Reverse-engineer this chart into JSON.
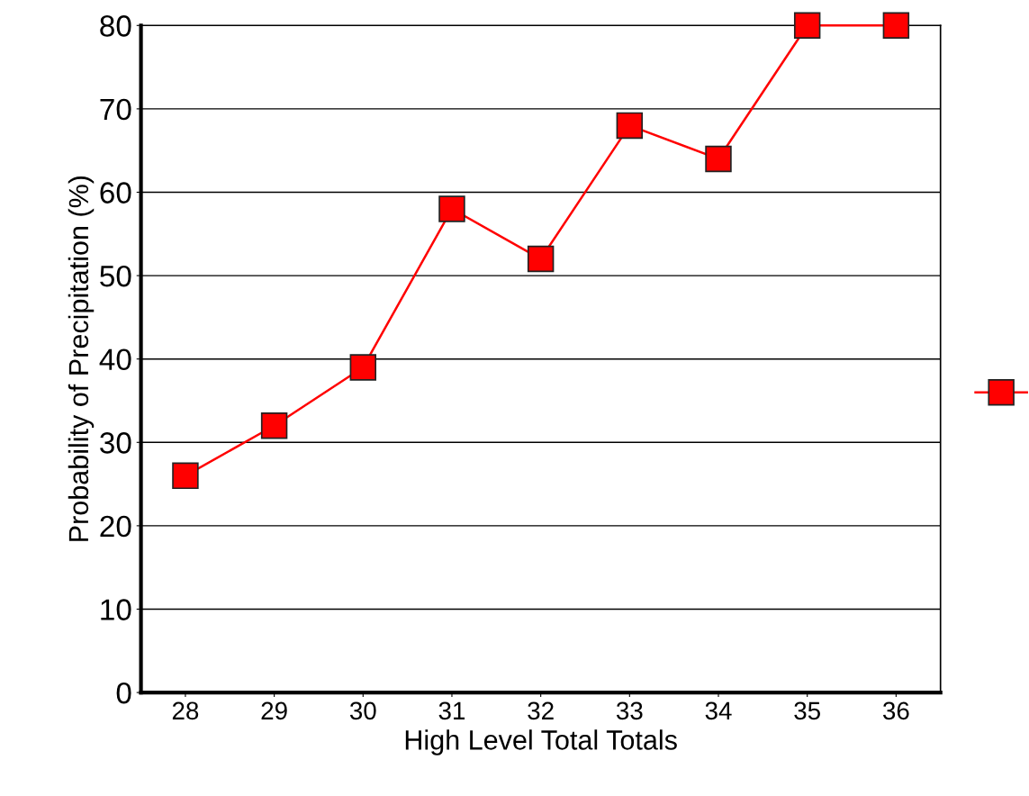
{
  "chart_data": {
    "type": "line",
    "xlabel": "High Level Total Totals",
    "ylabel": "Probability of Precipitation (%)",
    "categories": [
      "28",
      "29",
      "30",
      "31",
      "32",
      "33",
      "34",
      "35",
      "36"
    ],
    "series": [
      {
        "color": "#ff0000",
        "values": [
          26,
          32,
          39,
          58,
          52,
          68,
          64,
          80,
          80
        ]
      }
    ],
    "ylim": [
      0,
      80
    ],
    "yticks": [
      0,
      10,
      20,
      30,
      40,
      50,
      60,
      70,
      80
    ],
    "grid": "y",
    "marker": "square",
    "line_style": "solid"
  }
}
